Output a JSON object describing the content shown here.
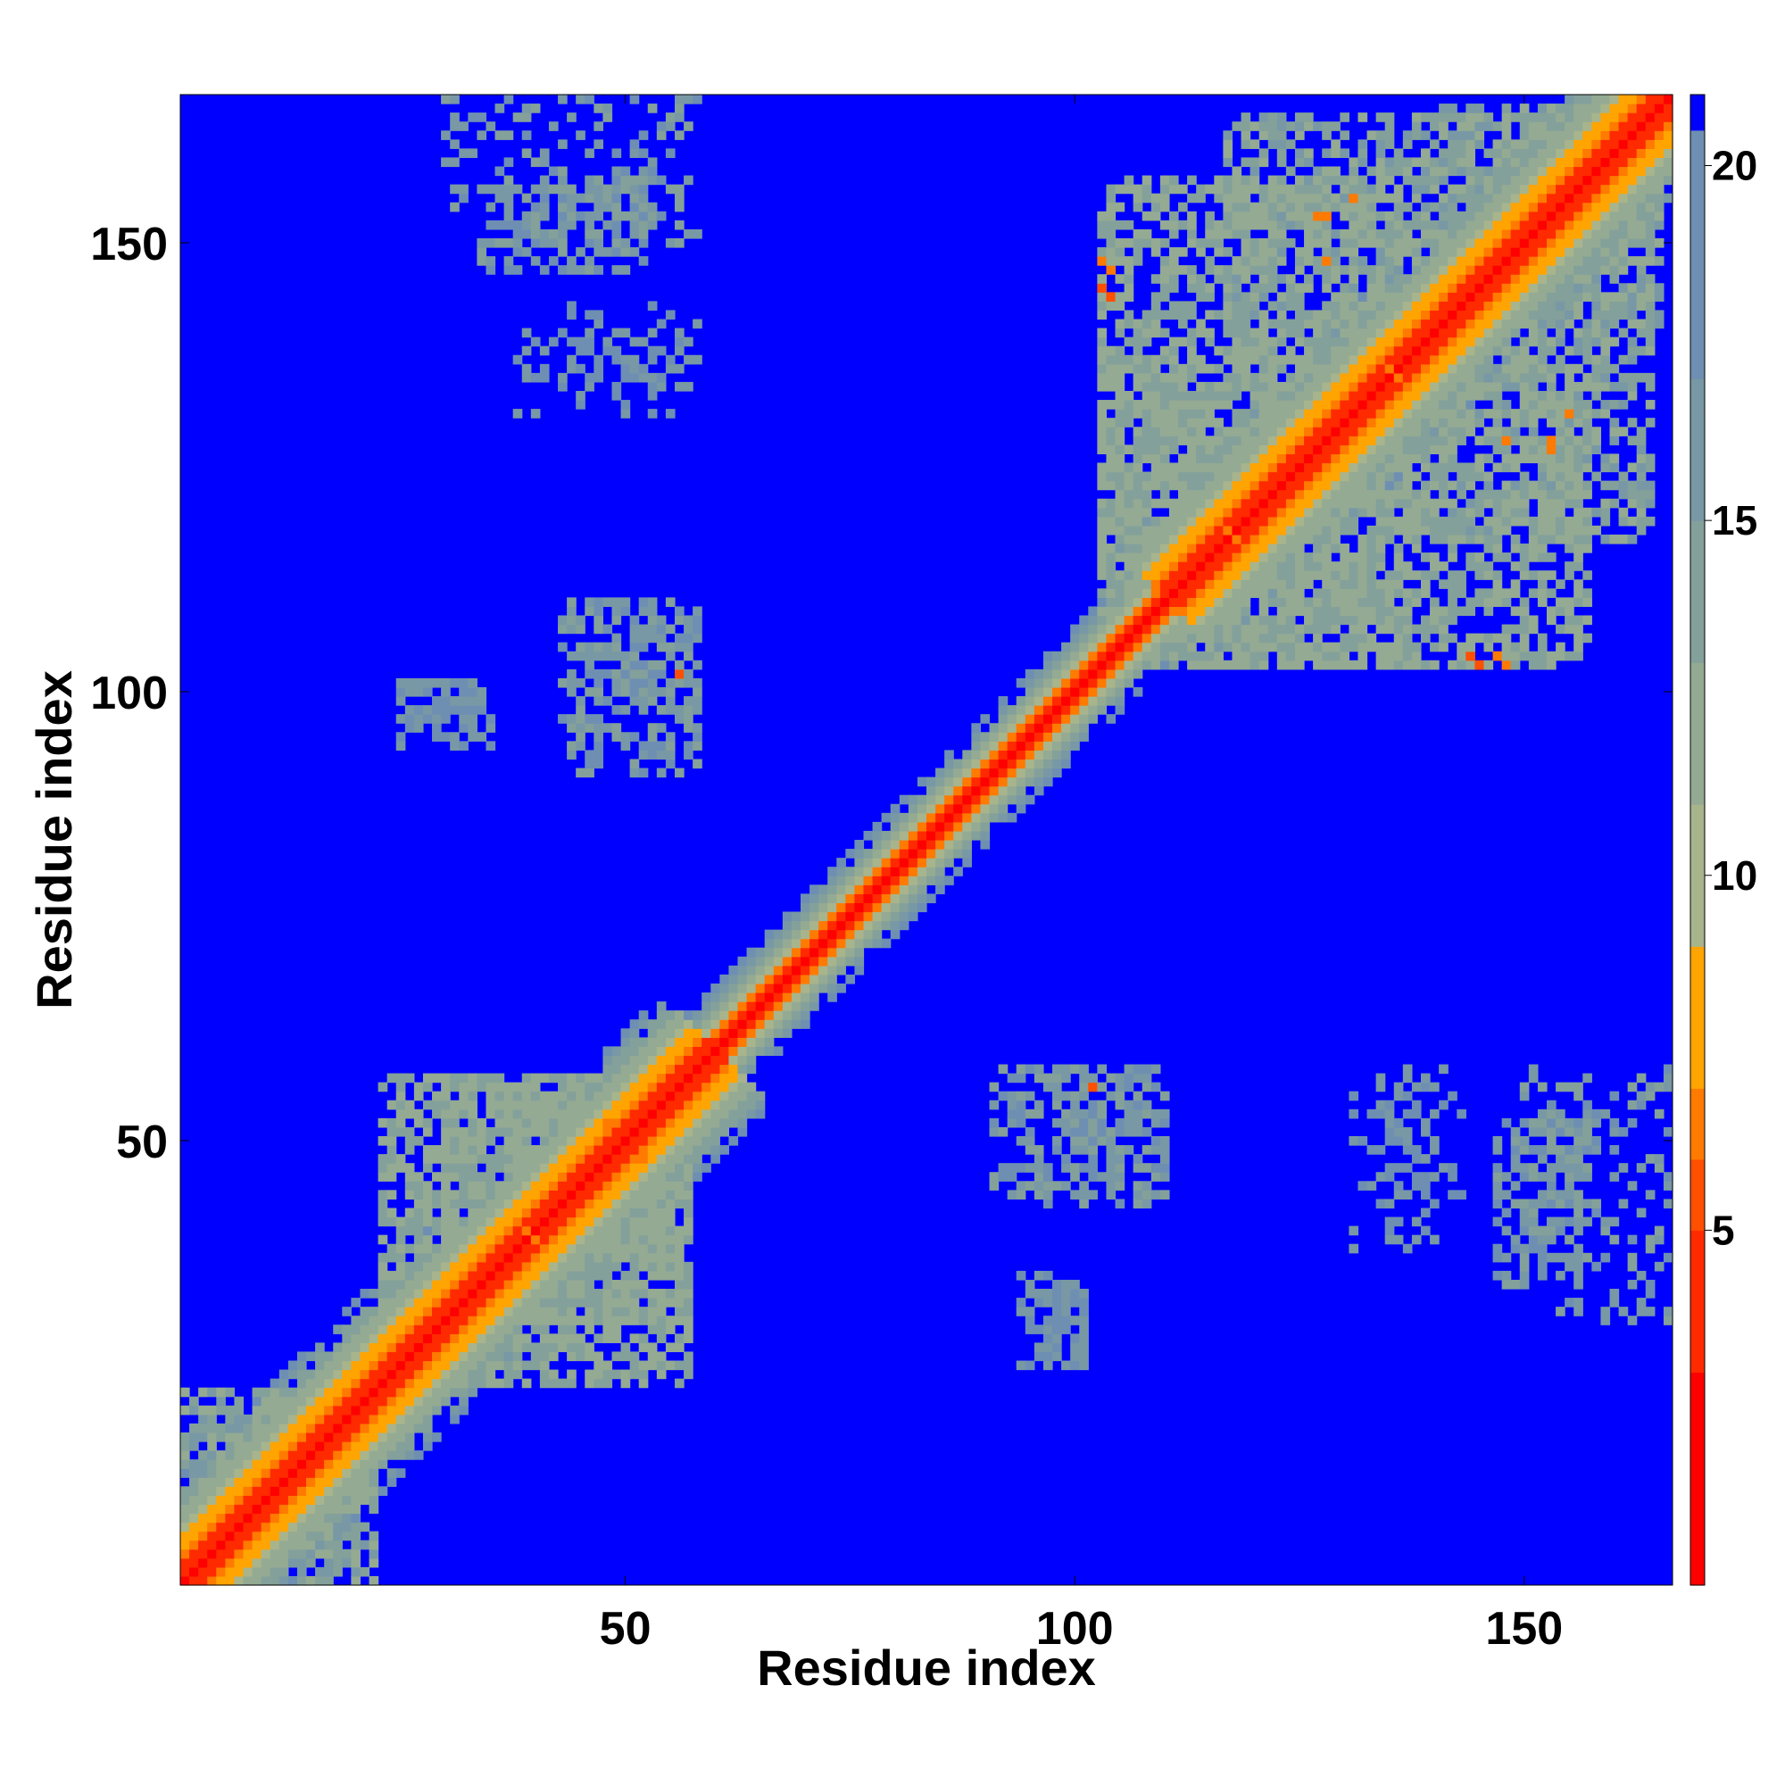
{
  "chart_data": {
    "type": "heatmap",
    "title": "",
    "xlabel": "Residue index",
    "ylabel": "Residue index",
    "x_range": [
      1,
      166
    ],
    "y_range": [
      1,
      166
    ],
    "x_ticks": [
      50,
      100,
      150
    ],
    "y_ticks": [
      50,
      100,
      150
    ],
    "x_tick_labels": [
      "50",
      "100",
      "150"
    ],
    "y_tick_labels": [
      "50",
      "100",
      "150"
    ],
    "colorbar": {
      "range": [
        0,
        21
      ],
      "ticks": [
        5,
        10,
        15,
        20
      ],
      "tick_labels": [
        "5",
        "10",
        "15",
        "20"
      ],
      "palette": [
        "#ff0000",
        "#ff2a00",
        "#ff4f00",
        "#ff7a00",
        "#ffa400",
        "#a8b48c",
        "#94aa93",
        "#84a09a",
        "#7898a5",
        "#6e8fb2",
        "#0000ff"
      ]
    },
    "background_value": 21,
    "matrix_symmetric": true,
    "diagonal_band": {
      "segments": [
        {
          "from": 1,
          "to": 60,
          "half_width": 12
        },
        {
          "from": 60,
          "to": 110,
          "half_width": 7
        },
        {
          "from": 110,
          "to": 166,
          "half_width": 12
        }
      ],
      "value_on_diagonal": 1,
      "value_at_band_edge": 17
    },
    "contact_blocks": [
      {
        "x": [
          2,
          22
        ],
        "y": [
          1,
          22
        ],
        "value": 14,
        "density": 0.6
      },
      {
        "x": [
          23,
          57
        ],
        "y": [
          30,
          57
        ],
        "value": 13,
        "density": 0.65
      },
      {
        "x": [
          103,
          137
        ],
        "y": [
          103,
          157
        ],
        "value": 13,
        "density": 0.6
      },
      {
        "x": [
          138,
          164
        ],
        "y": [
          117,
          165
        ],
        "value": 14,
        "density": 0.6
      },
      {
        "x": [
          147,
          157
        ],
        "y": [
          34,
          52
        ],
        "value": 16,
        "density": 0.45
      },
      {
        "x": [
          131,
          140
        ],
        "y": [
          38,
          58
        ],
        "value": 17,
        "density": 0.25
      },
      {
        "x": [
          91,
          110
        ],
        "y": [
          44,
          58
        ],
        "value": 16,
        "density": 0.4
      },
      {
        "x": [
          94,
          101
        ],
        "y": [
          25,
          35
        ],
        "value": 17,
        "density": 0.5
      },
      {
        "x": [
          25,
          34
        ],
        "y": [
          96,
          101
        ],
        "value": 17,
        "density": 0.5
      },
      {
        "x": [
          43,
          58
        ],
        "y": [
          94,
          108
        ],
        "value": 16,
        "density": 0.4
      },
      {
        "x": [
          30,
          58
        ],
        "y": [
          150,
          166
        ],
        "value": 16,
        "density": 0.35
      },
      {
        "x": [
          43,
          58
        ],
        "y": [
          134,
          143
        ],
        "value": 17,
        "density": 0.25
      }
    ],
    "hotspots": [
      {
        "x": 103,
        "y": 148,
        "value": 6
      },
      {
        "x": 104,
        "y": 147,
        "value": 6
      },
      {
        "x": 131,
        "y": 155,
        "value": 6
      },
      {
        "x": 127,
        "y": 153,
        "value": 6
      },
      {
        "x": 148,
        "y": 128,
        "value": 6
      },
      {
        "x": 144,
        "y": 104,
        "value": 5
      },
      {
        "x": 145,
        "y": 103,
        "value": 5
      },
      {
        "x": 56,
        "y": 102,
        "value": 5
      },
      {
        "x": 102,
        "y": 56,
        "value": 5
      },
      {
        "x": 40,
        "y": 39,
        "value": 6
      },
      {
        "x": 48,
        "y": 52,
        "value": 6
      },
      {
        "x": 118,
        "y": 117,
        "value": 6
      },
      {
        "x": 135,
        "y": 136,
        "value": 6
      },
      {
        "x": 153,
        "y": 128,
        "value": 6
      }
    ],
    "grid": false
  }
}
